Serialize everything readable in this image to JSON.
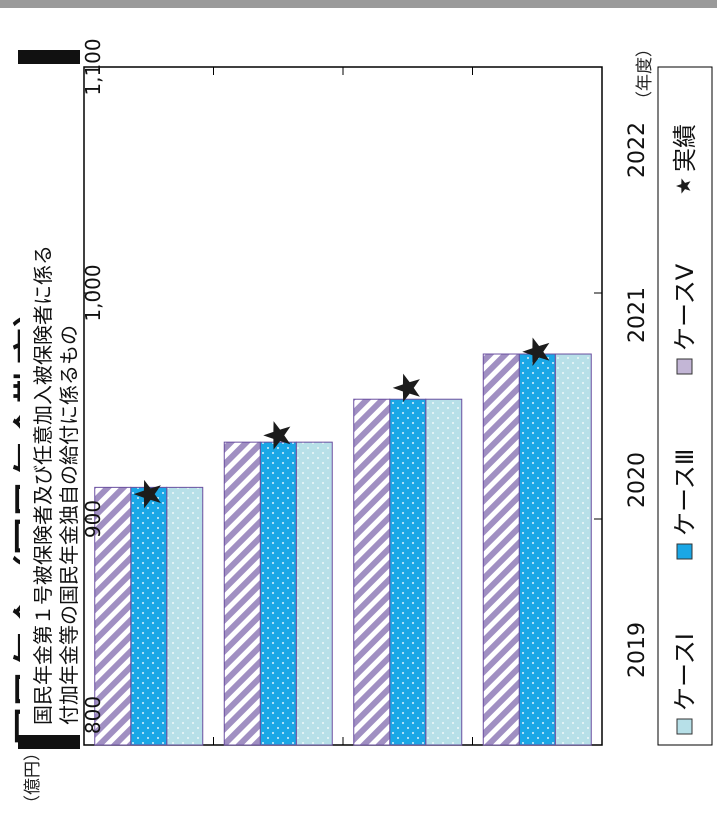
{
  "header": {
    "title": "国民年金（国民年金勘定）",
    "subtitle_line1": "国民年金第１号被保険者及び任意加入被保険者に係る",
    "subtitle_line2": "付加年金等の国民年金独自の給付に係るもの"
  },
  "colors": {
    "case1": "#b7e0e8",
    "case3": "#1aa7e6",
    "case5": "#c3b6d6",
    "case5_stripe": "#9d8bbd",
    "star": "#1c1c1c",
    "axis": "#000000"
  },
  "chart_data": {
    "type": "bar",
    "orientation": "horizontal-rotated",
    "unit_label": "（億円）",
    "x_unit_label": "（年度）",
    "categories": [
      "2019",
      "2020",
      "2021",
      "2022"
    ],
    "ylim": [
      800,
      1100
    ],
    "yticks": [
      800,
      900,
      "1,000",
      "1,100"
    ],
    "ytick_values": [
      800,
      900,
      1000,
      1100
    ],
    "series": [
      {
        "name": "ケースⅠ",
        "values": [
          973,
          953,
          934,
          914
        ]
      },
      {
        "name": "ケースⅢ",
        "values": [
          973,
          953,
          934,
          914
        ]
      },
      {
        "name": "ケースⅤ",
        "values": [
          973,
          953,
          934,
          914
        ]
      }
    ],
    "actual": {
      "name": "実績",
      "values": [
        974,
        958,
        937,
        911
      ]
    },
    "legend_position": "bottom"
  }
}
